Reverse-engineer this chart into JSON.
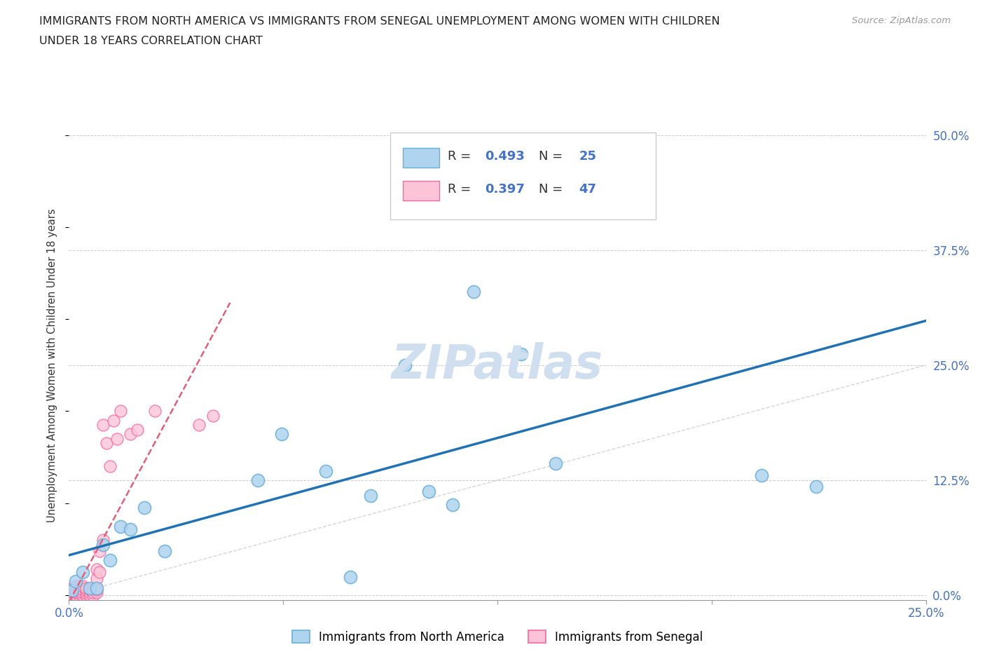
{
  "title_line1": "IMMIGRANTS FROM NORTH AMERICA VS IMMIGRANTS FROM SENEGAL UNEMPLOYMENT AMONG WOMEN WITH CHILDREN",
  "title_line2": "UNDER 18 YEARS CORRELATION CHART",
  "source": "Source: ZipAtlas.com",
  "ylabel": "Unemployment Among Women with Children Under 18 years",
  "xlabel_blue": "Immigrants from North America",
  "xlabel_pink": "Immigrants from Senegal",
  "R_blue": 0.493,
  "N_blue": 25,
  "R_pink": 0.397,
  "N_pink": 47,
  "xlim": [
    0.0,
    0.25
  ],
  "ylim": [
    -0.005,
    0.505
  ],
  "xticks": [
    0.0,
    0.0625,
    0.125,
    0.1875,
    0.25
  ],
  "xtick_labels": [
    "0.0%",
    "",
    "",
    "",
    "25.0%"
  ],
  "yticks_right": [
    0.0,
    0.125,
    0.25,
    0.375,
    0.5
  ],
  "ytick_labels_right": [
    "0.0%",
    "12.5%",
    "25.0%",
    "37.5%",
    "50.0%"
  ],
  "blue_color": "#6baed6",
  "blue_fill": "#aed4f0",
  "pink_color": "#f768a1",
  "pink_fill": "#fdc4d8",
  "blue_line_color": "#2171b5",
  "pink_line_color": "#e0607a",
  "diag_color": "#cccccc",
  "watermark_color": "#d0dff0",
  "background_color": "#ffffff",
  "north_america_x": [
    0.001,
    0.002,
    0.004,
    0.006,
    0.008,
    0.01,
    0.012,
    0.015,
    0.018,
    0.022,
    0.028,
    0.055,
    0.062,
    0.075,
    0.082,
    0.088,
    0.098,
    0.105,
    0.112,
    0.118,
    0.132,
    0.142,
    0.155,
    0.202,
    0.218
  ],
  "north_america_y": [
    0.005,
    0.015,
    0.025,
    0.008,
    0.008,
    0.055,
    0.038,
    0.075,
    0.072,
    0.095,
    0.048,
    0.125,
    0.175,
    0.135,
    0.02,
    0.108,
    0.25,
    0.113,
    0.098,
    0.33,
    0.262,
    0.143,
    0.44,
    0.13,
    0.118
  ],
  "senegal_x": [
    0.0,
    0.0,
    0.001,
    0.001,
    0.001,
    0.002,
    0.002,
    0.002,
    0.002,
    0.003,
    0.003,
    0.003,
    0.003,
    0.003,
    0.003,
    0.004,
    0.004,
    0.004,
    0.004,
    0.005,
    0.005,
    0.005,
    0.005,
    0.006,
    0.006,
    0.006,
    0.007,
    0.007,
    0.007,
    0.008,
    0.008,
    0.008,
    0.008,
    0.009,
    0.009,
    0.01,
    0.01,
    0.011,
    0.012,
    0.013,
    0.014,
    0.015,
    0.018,
    0.02,
    0.025,
    0.038,
    0.042
  ],
  "senegal_y": [
    0.0,
    0.005,
    0.0,
    0.003,
    0.008,
    0.0,
    0.003,
    0.006,
    0.01,
    0.0,
    0.002,
    0.004,
    0.006,
    0.008,
    0.01,
    0.0,
    0.003,
    0.006,
    0.01,
    0.0,
    0.002,
    0.005,
    0.008,
    0.0,
    0.003,
    0.006,
    0.0,
    0.003,
    0.006,
    0.003,
    0.006,
    0.018,
    0.028,
    0.025,
    0.048,
    0.06,
    0.185,
    0.165,
    0.14,
    0.19,
    0.17,
    0.2,
    0.175,
    0.18,
    0.2,
    0.185,
    0.195
  ]
}
